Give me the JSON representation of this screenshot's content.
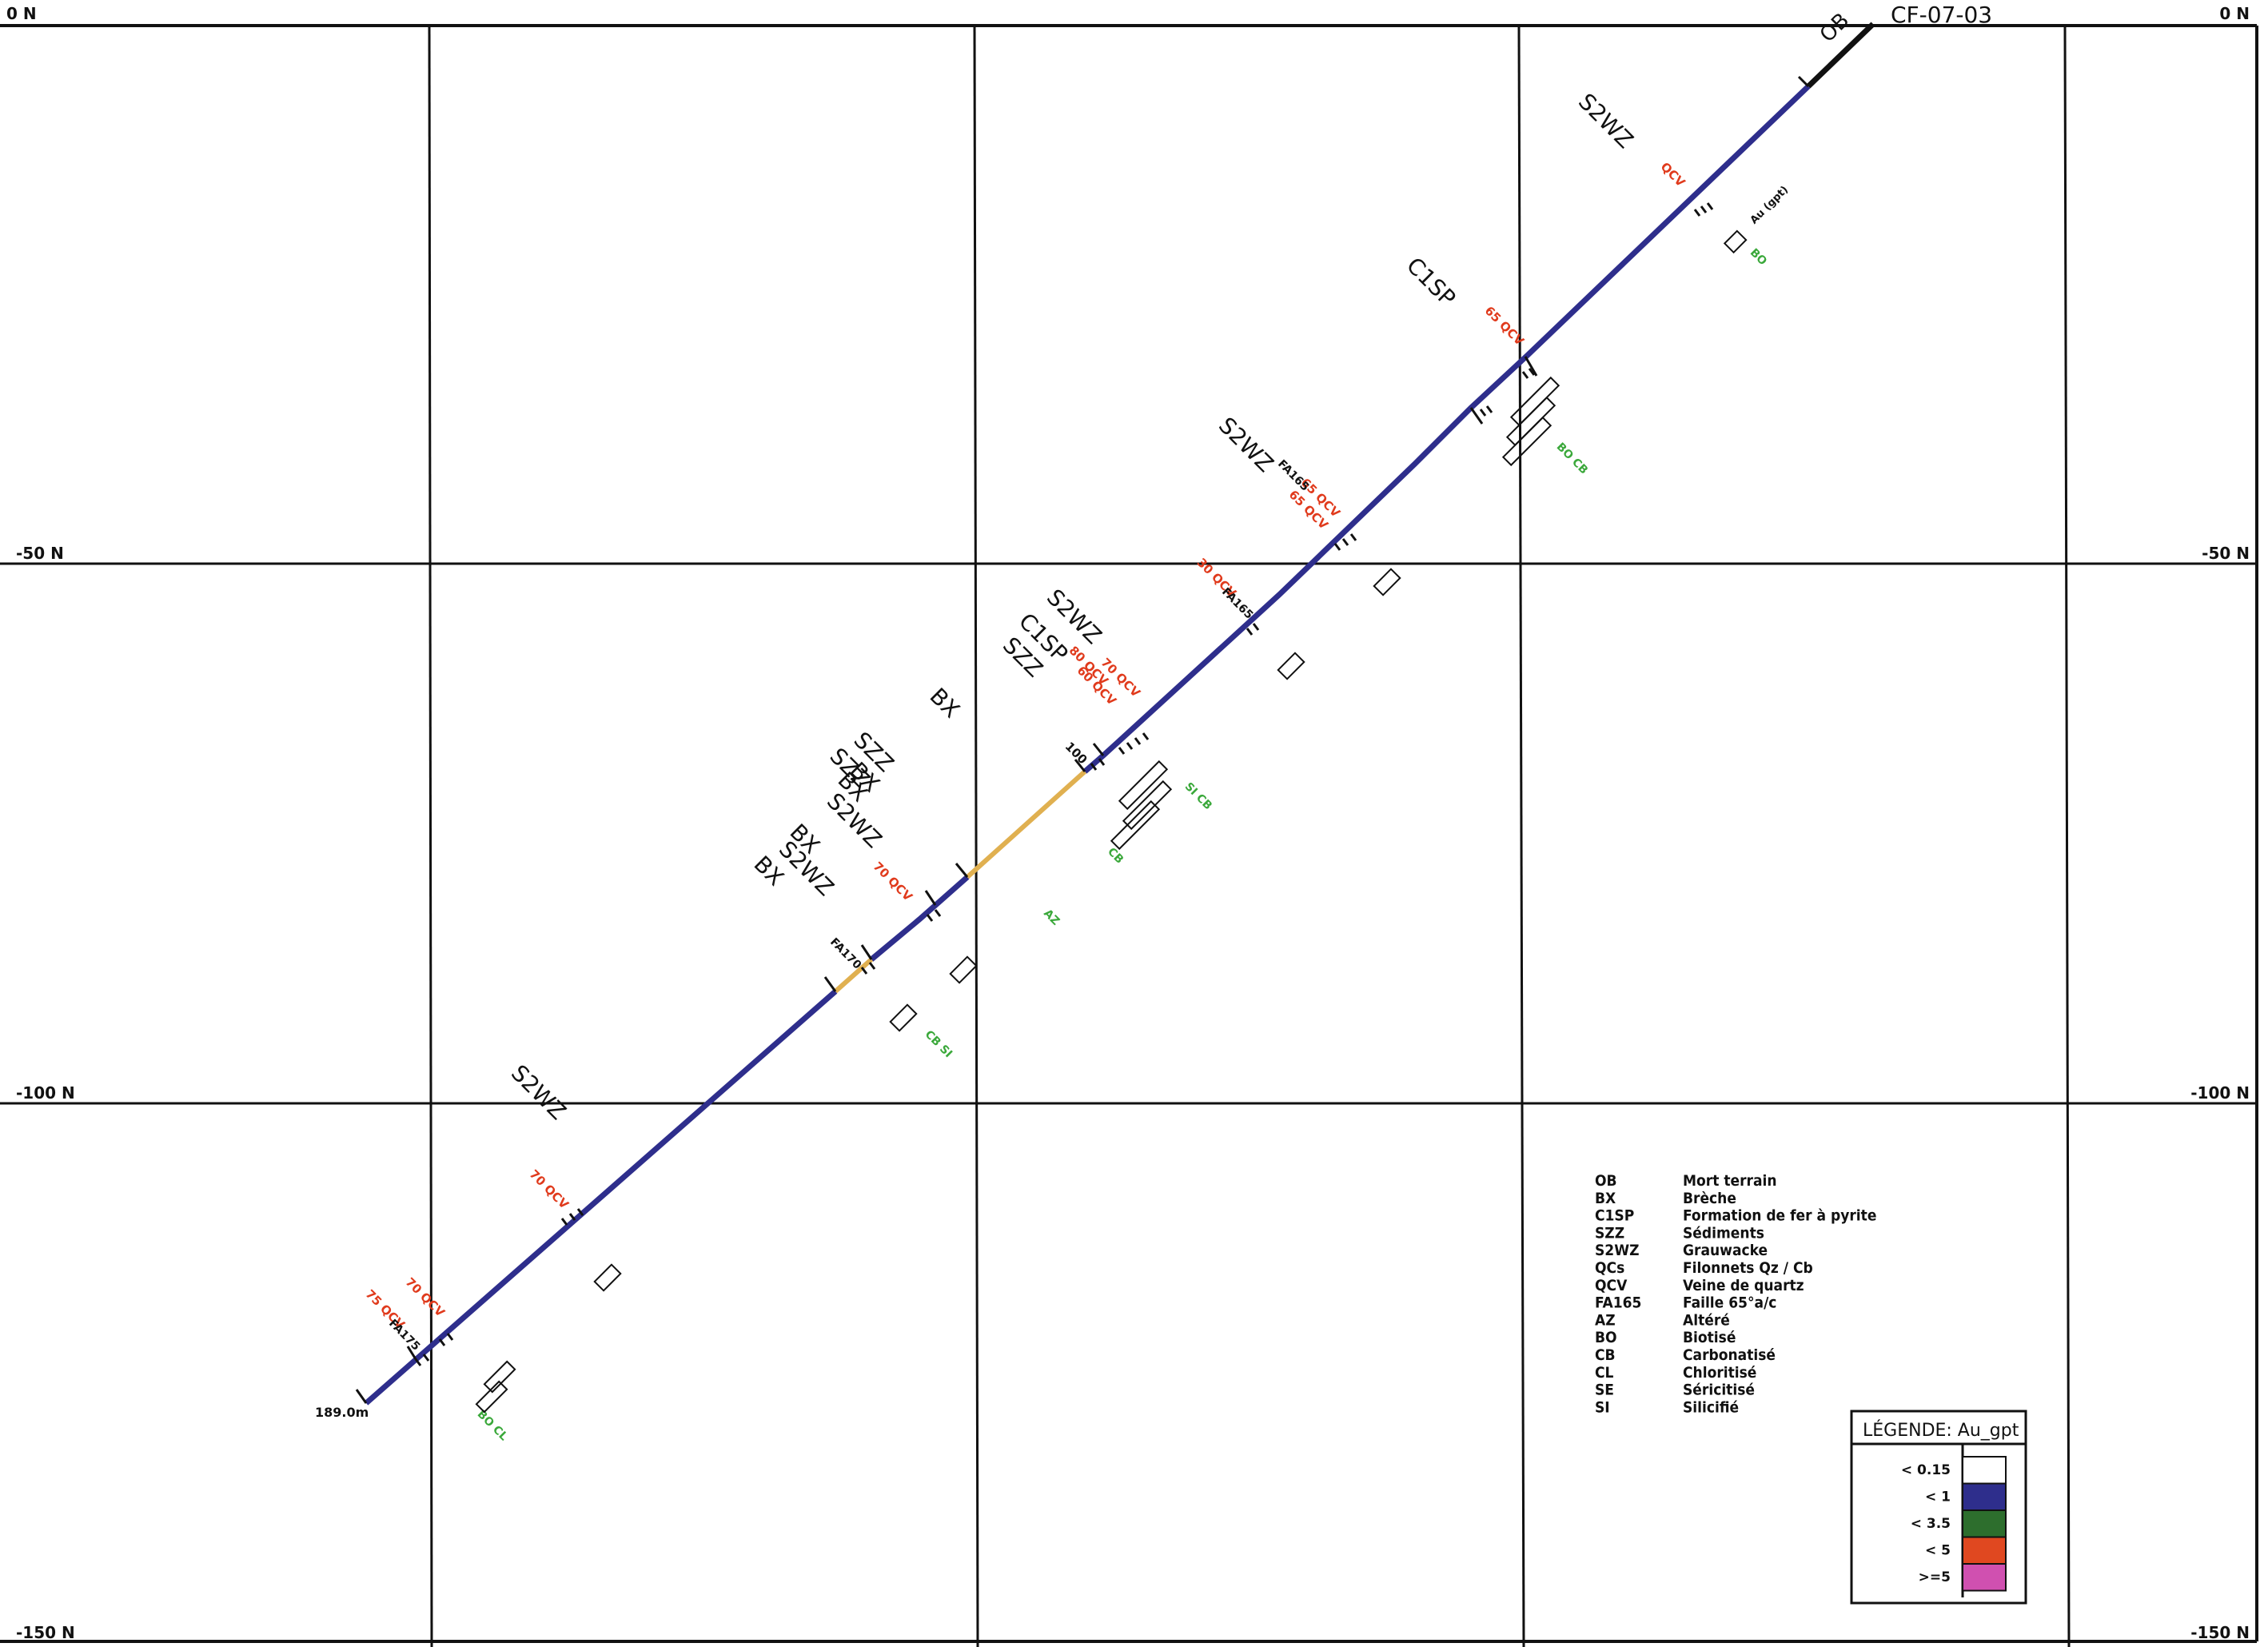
{
  "hole_id": "CF-07-03",
  "end_depth": "189.0m",
  "collar_unit": "OB",
  "northing_labels": [
    "0 N",
    "-50 N",
    "-100 N",
    "-150 N"
  ],
  "colors": {
    "grid": "#111111",
    "trace_low": "#2e2e8c",
    "trace_weak": "#e0b050",
    "unit_label": "#111111",
    "vein_label": "#e03a1c",
    "alteration_label": "#3aa83a",
    "assay_label": "#6a6ad8"
  },
  "units_along_hole": [
    "S2WZ",
    "C1SP",
    "S2WZ",
    "S2WZ",
    "C1SP",
    "SZZ",
    "BX",
    "SZZ",
    "SZZ",
    "BX",
    "BX",
    "S2WZ",
    "BX",
    "S2WZ",
    "BX",
    "S2WZ"
  ],
  "vein_labels": [
    "QCV",
    "65 QCV",
    "65 QCV",
    "65 QCV",
    "30 QCV",
    "80 QCV",
    "60 QCV",
    "70 QCV",
    "70 QCV",
    "70 QCV",
    "70 QCV",
    "75 QCV"
  ],
  "fault_labels": [
    "FA165",
    "FA165",
    "FA170",
    "FA175"
  ],
  "alteration_labels": [
    "BO",
    "BO CB",
    "SI CB",
    "CB",
    "AZ",
    "CB SI",
    "BO CL"
  ],
  "depth_mark": "100",
  "assay_header": "Au (gpt)",
  "code_legend": [
    {
      "code": "OB",
      "desc": "Mort terrain"
    },
    {
      "code": "BX",
      "desc": "Brèche"
    },
    {
      "code": "C1SP",
      "desc": "Formation de fer à pyrite"
    },
    {
      "code": "SZZ",
      "desc": "Sédiments"
    },
    {
      "code": "S2WZ",
      "desc": "Grauwacke"
    },
    {
      "code": "QCs",
      "desc": "Filonnets Qz / Cb"
    },
    {
      "code": "QCV",
      "desc": "Veine de quartz"
    },
    {
      "code": "FA165",
      "desc": "Faille 65°a/c"
    },
    {
      "code": "AZ",
      "desc": "Altéré"
    },
    {
      "code": "BO",
      "desc": "Biotisé"
    },
    {
      "code": "CB",
      "desc": "Carbonatisé"
    },
    {
      "code": "CL",
      "desc": "Chloritisé"
    },
    {
      "code": "SE",
      "desc": "Séricitisé"
    },
    {
      "code": "SI",
      "desc": "Silicifié"
    }
  ],
  "grade_legend": {
    "title": "LÉGENDE: Au_gpt",
    "items": [
      {
        "label": "< 0.15",
        "color": "#ffffff"
      },
      {
        "label": "< 1",
        "color": "#2e2e8c"
      },
      {
        "label": "< 3.5",
        "color": "#2d6e2d"
      },
      {
        "label": "< 5",
        "color": "#e04820"
      },
      {
        "label": ">=5",
        "color": "#d050b0"
      }
    ]
  }
}
